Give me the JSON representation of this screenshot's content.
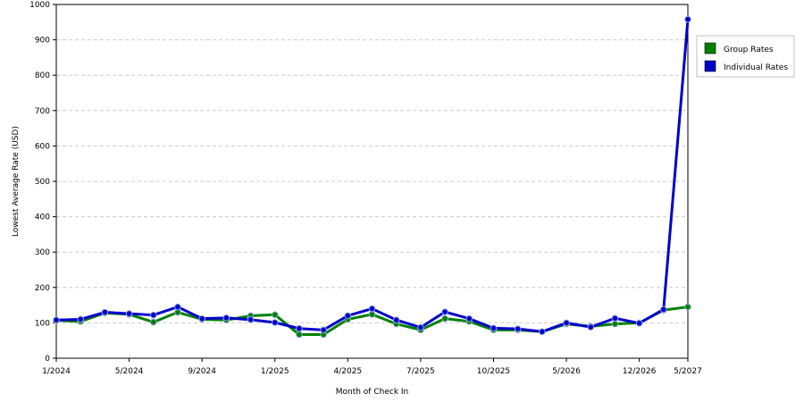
{
  "chart_data": {
    "type": "line",
    "title": "",
    "xlabel": "Month of Check In",
    "ylabel": "Lowest Average Rate (USD)",
    "ylim": [
      0,
      1000
    ],
    "yticks": [
      0,
      100,
      200,
      300,
      400,
      500,
      600,
      700,
      800,
      900,
      1000
    ],
    "x_tick_labels": [
      "1/2024",
      "5/2024",
      "9/2024",
      "1/2025",
      "4/2025",
      "7/2025",
      "10/2025",
      "5/2026",
      "12/2026",
      "5/2027"
    ],
    "x_tick_positions": [
      0,
      3,
      6,
      9,
      12,
      15,
      18,
      21,
      24,
      26
    ],
    "x": [
      0,
      1,
      2,
      3,
      4,
      5,
      6,
      7,
      8,
      9,
      10,
      11,
      12,
      13,
      14,
      15,
      16,
      17,
      18,
      19,
      20,
      21,
      22,
      23,
      24,
      25,
      26
    ],
    "grid": "horizontal-dashed",
    "legend_position": "right",
    "series": [
      {
        "name": "Group Rates",
        "color": "#008000",
        "values": [
          107,
          104,
          128,
          124,
          102,
          130,
          110,
          108,
          120,
          123,
          67,
          67,
          110,
          124,
          97,
          80,
          112,
          104,
          80,
          80,
          75,
          97,
          90,
          97,
          100,
          136,
          145
        ]
      },
      {
        "name": "Individual Rates",
        "color": "#0000cc",
        "values": [
          108,
          110,
          130,
          126,
          122,
          145,
          112,
          114,
          109,
          101,
          84,
          80,
          120,
          140,
          108,
          87,
          131,
          112,
          85,
          83,
          75,
          100,
          88,
          113,
          99,
          138,
          958
        ]
      }
    ]
  }
}
